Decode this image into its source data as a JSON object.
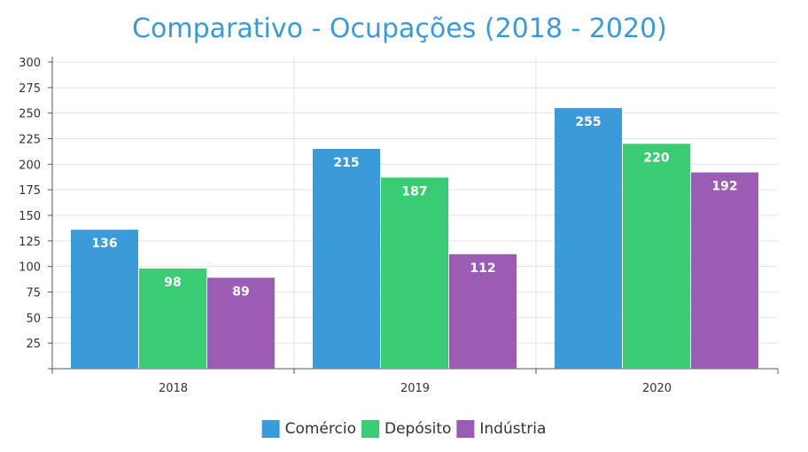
{
  "chart_data": {
    "type": "bar",
    "title": "Comparativo - Ocupações (2018 - 2020)",
    "xlabel": "",
    "ylabel": "",
    "categories": [
      "2018",
      "2019",
      "2020"
    ],
    "series": [
      {
        "name": "Comércio",
        "color": "#3b9ad9",
        "values": [
          136,
          215,
          255
        ]
      },
      {
        "name": "Depósito",
        "color": "#3acc72",
        "values": [
          98,
          187,
          220
        ]
      },
      {
        "name": "Indústria",
        "color": "#9a5cb4",
        "values": [
          89,
          112,
          192
        ]
      }
    ],
    "ylim": [
      0,
      300
    ],
    "yticks": [
      25,
      50,
      75,
      100,
      125,
      150,
      175,
      200,
      225,
      250,
      275,
      300
    ],
    "grid": true,
    "legend_position": "bottom",
    "data_labels": true
  }
}
